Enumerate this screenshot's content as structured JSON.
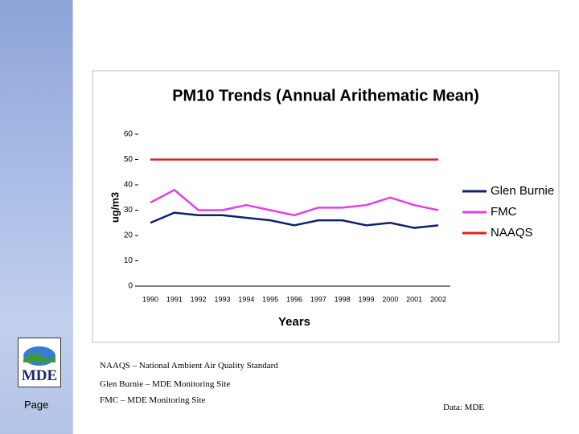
{
  "chart_data": {
    "type": "line",
    "title": "PM10 Trends (Annual Arithematic Mean)",
    "y_label": "ug/m3",
    "x_label": "Years",
    "categories": [
      "1990",
      "1991",
      "1992",
      "1993",
      "1994",
      "1995",
      "1996",
      "1997",
      "1998",
      "1999",
      "2000",
      "2001",
      "2002"
    ],
    "series": [
      {
        "name": "Glen Burnie",
        "color": "#10206a",
        "values": [
          25,
          29,
          28,
          28,
          27,
          26,
          24,
          26,
          26,
          24,
          25,
          23,
          24
        ]
      },
      {
        "name": "FMC",
        "color": "#e040e8",
        "values": [
          33,
          38,
          30,
          30,
          32,
          30,
          28,
          31,
          31,
          32,
          35,
          32,
          30
        ]
      },
      {
        "name": "NAAQS",
        "color": "#e02020",
        "values": [
          50,
          50,
          50,
          50,
          50,
          50,
          50,
          50,
          50,
          50,
          50,
          50,
          50
        ]
      }
    ],
    "ylim": [
      0,
      60
    ],
    "yticks": [
      0,
      10,
      20,
      30,
      40,
      50,
      60
    ],
    "grid": false,
    "legend": "right"
  },
  "notes": [
    "NAAQS – National Ambient Air Quality Standard",
    "Glen Burnie – MDE Monitoring Site",
    "FMC – MDE Monitoring Site"
  ],
  "source": "Data: MDE",
  "footer": {
    "logo": "MDE",
    "page": "Page"
  }
}
